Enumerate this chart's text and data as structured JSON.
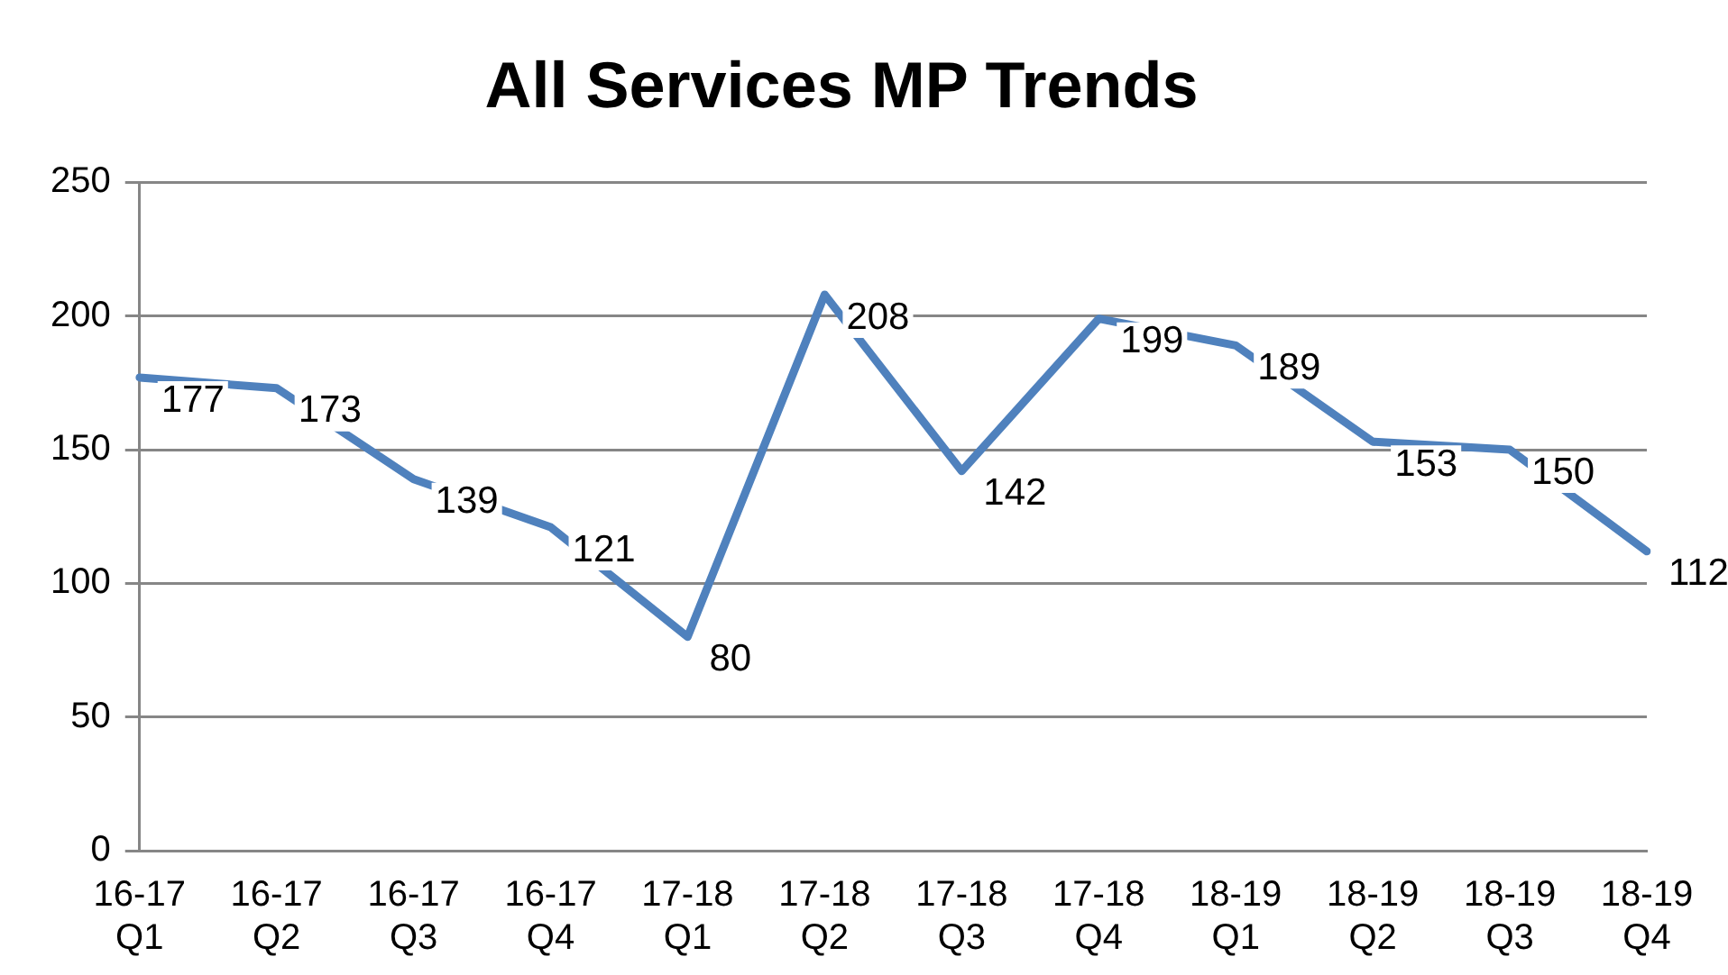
{
  "chart_data": {
    "type": "line",
    "title": "All Services MP Trends",
    "categories": [
      "16-17 Q1",
      "16-17 Q2",
      "16-17 Q3",
      "16-17 Q4",
      "17-18 Q1",
      "17-18 Q2",
      "17-18 Q3",
      "17-18 Q4",
      "18-19 Q1",
      "18-19 Q2",
      "18-19 Q3",
      "18-19 Q4"
    ],
    "series": [
      {
        "color": "#4f81bd",
        "values": [
          177,
          173,
          139,
          121,
          80,
          208,
          142,
          199,
          189,
          153,
          150,
          112
        ]
      }
    ],
    "ylim": [
      0,
      250
    ],
    "yticks": [
      0,
      50,
      100,
      150,
      200,
      250
    ],
    "grid": "y",
    "legend": false,
    "marker": "none",
    "line_style": "solid",
    "data_labels": true
  }
}
